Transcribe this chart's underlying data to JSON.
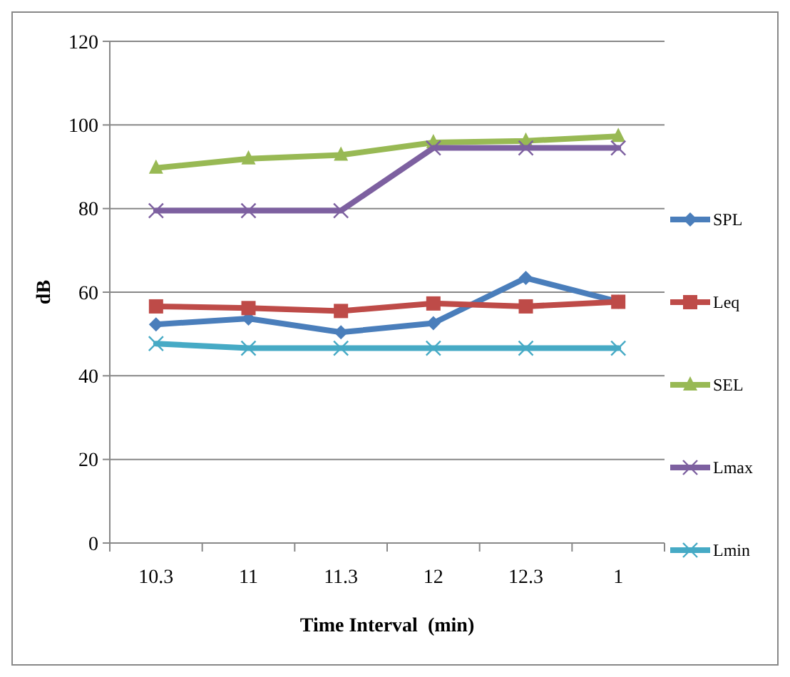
{
  "chart_data": {
    "type": "line",
    "xlabel": "Time Interval  (min)",
    "ylabel": "dB",
    "categories": [
      "10.3",
      "11",
      "11.3",
      "12",
      "12.3",
      "1"
    ],
    "ylim": [
      0,
      120
    ],
    "yticks": [
      0,
      20,
      40,
      60,
      80,
      100,
      120
    ],
    "grid": "y",
    "legend": "right",
    "series": [
      {
        "name": "SPL",
        "color": "#4a7ebb",
        "marker": "diamond",
        "values": [
          52.3,
          53.7,
          50.4,
          52.6,
          63.4,
          57.7
        ]
      },
      {
        "name": "Leq",
        "color": "#be4b48",
        "marker": "square",
        "values": [
          56.6,
          56.2,
          55.5,
          57.3,
          56.6,
          57.7
        ]
      },
      {
        "name": "SEL",
        "color": "#98b954",
        "marker": "triangle",
        "values": [
          89.7,
          91.9,
          92.8,
          95.8,
          96.2,
          97.3
        ]
      },
      {
        "name": "Lmax",
        "color": "#7d60a0",
        "marker": "cross",
        "values": [
          79.5,
          79.5,
          79.5,
          94.5,
          94.5,
          94.5
        ]
      },
      {
        "name": "Lmin",
        "color": "#46aac5",
        "marker": "cross",
        "values": [
          47.7,
          46.6,
          46.6,
          46.6,
          46.6,
          46.6
        ]
      }
    ]
  }
}
